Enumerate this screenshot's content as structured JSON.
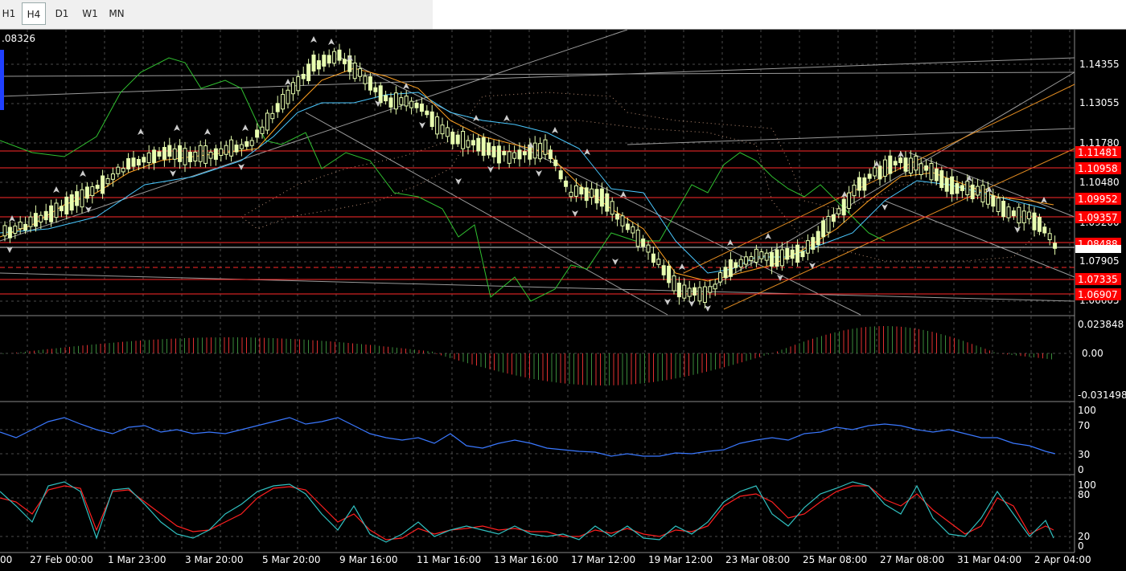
{
  "toolbar": {
    "timeframes": [
      "H1",
      "H4",
      "D1",
      "W1",
      "MN"
    ],
    "active": "H4"
  },
  "main_chart": {
    "current_price_label": ".08326",
    "price_axis_labels": [
      "1.14355",
      "1.13055",
      "1.11780",
      "1.10480",
      "1.09200",
      "1.07905",
      "1.06605"
    ],
    "highlighted_levels": [
      "1.11481",
      "1.10958",
      "1.09952",
      "1.09357",
      "1.08488",
      "1.07335",
      "1.06907"
    ],
    "current_price_tag": "1.08326"
  },
  "macd_panel": {
    "labels": [
      "0.023848",
      "0.00",
      "-0.031498"
    ]
  },
  "rsi_panel": {
    "labels": [
      "100",
      "70",
      "30",
      "0"
    ]
  },
  "stoch_panel": {
    "labels": [
      "100",
      "80",
      "20",
      "0"
    ]
  },
  "time_axis": {
    "labels": [
      "00",
      "27 Feb 00:00",
      "1 Mar 23:00",
      "3 Mar 20:00",
      "5 Mar 20:00",
      "9 Mar 16:00",
      "11 Mar 16:00",
      "13 Mar 16:00",
      "17 Mar 12:00",
      "19 Mar 12:00",
      "23 Mar 08:00",
      "25 Mar 08:00",
      "27 Mar 08:00",
      "31 Mar 04:00",
      "2 Apr 04:00"
    ]
  },
  "colors": {
    "background": "#000000",
    "grid": "#5a5a5a",
    "bull_candle": "#e8ffb0",
    "bear_candle": "#e8ffb0",
    "level_line": "#ff2a2a",
    "level_tag_bg": "#ff0000",
    "macd_bull": "#3a8a3a",
    "macd_bear": "#e03030",
    "rsi_line": "#3a78ff",
    "stoch_main": "#30c0c0",
    "stoch_signal": "#ff2020",
    "ichimoku_cloud": "#e8b090"
  }
}
